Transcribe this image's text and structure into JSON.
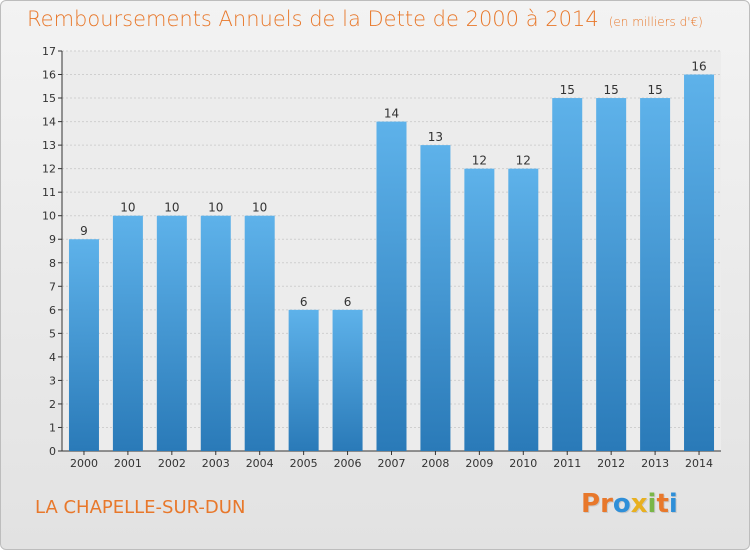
{
  "header": {
    "title": "Remboursements Annuels de la Dette de 2000 à 2014",
    "unit": "(en milliers d'€)"
  },
  "footer": {
    "place": "LA CHAPELLE-SUR-DUN",
    "brand_letters": [
      "P",
      "r",
      "o",
      "x",
      "i",
      "t",
      "i"
    ],
    "brand_colors": [
      "#e8782b",
      "#e8782b",
      "#2f8fd8",
      "#e8b020",
      "#7ab648",
      "#e8782b",
      "#2f8fd8"
    ]
  },
  "colors": {
    "bar_top": "#5eb2ea",
    "bar_bottom": "#2a7ab8",
    "title": "#e8782b",
    "grid": "#cfcfcf",
    "axis": "#333333"
  },
  "chart_data": {
    "type": "bar",
    "categories": [
      "2000",
      "2001",
      "2002",
      "2003",
      "2004",
      "2005",
      "2006",
      "2007",
      "2008",
      "2009",
      "2010",
      "2011",
      "2012",
      "2013",
      "2014"
    ],
    "values": [
      9,
      10,
      10,
      10,
      10,
      6,
      6,
      14,
      13,
      12,
      12,
      15,
      15,
      15,
      16
    ],
    "yticks": [
      0,
      1,
      2,
      3,
      4,
      5,
      6,
      7,
      8,
      9,
      10,
      11,
      12,
      13,
      14,
      15,
      16,
      17
    ],
    "ylim": [
      0,
      17
    ],
    "grid": true,
    "data_labels": true
  }
}
